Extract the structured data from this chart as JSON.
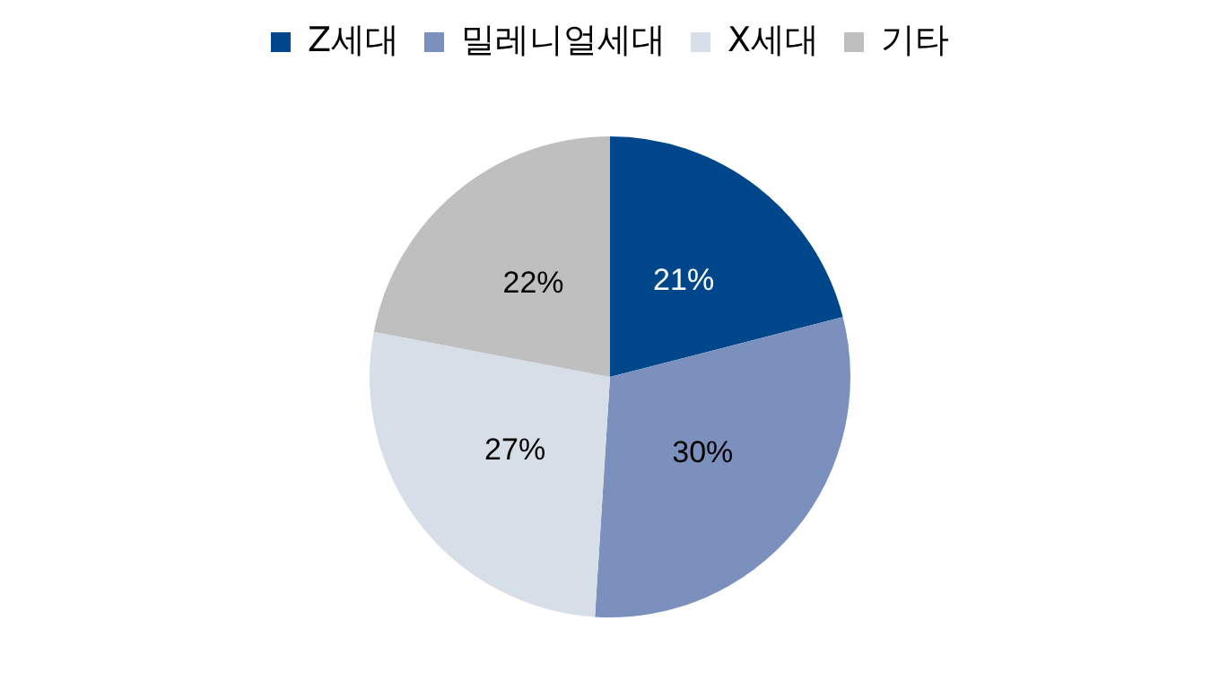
{
  "chart_data": {
    "type": "pie",
    "categories": [
      "Z세대",
      "밀레니얼세대",
      "X세대",
      "기타"
    ],
    "values": [
      21,
      30,
      27,
      22
    ],
    "colors": [
      "#00468b",
      "#7b90bd",
      "#d6dfe8",
      "#bfbfbf"
    ],
    "value_labels": [
      "21%",
      "30%",
      "27%",
      "22%"
    ],
    "legend": "top"
  }
}
